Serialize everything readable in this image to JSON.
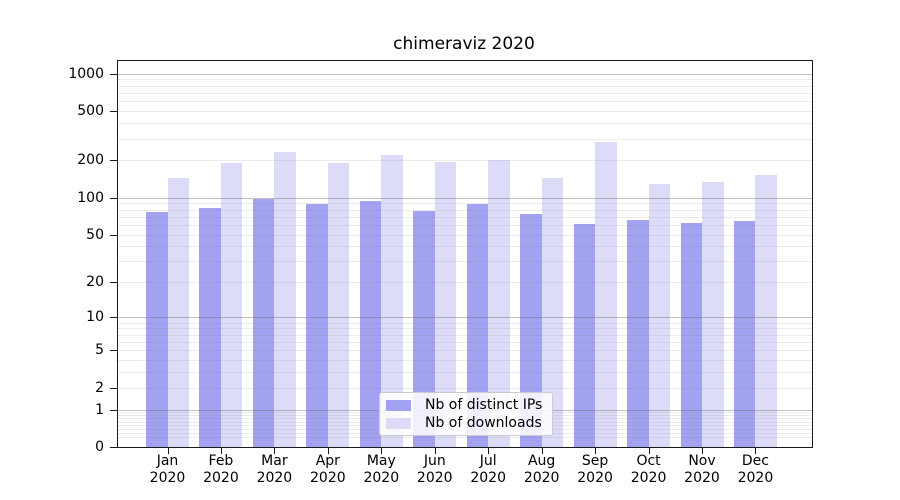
{
  "chart_data": {
    "type": "bar",
    "title": "chimeraviz 2020",
    "categories": [
      "Jan 2020",
      "Feb 2020",
      "Mar 2020",
      "Apr 2020",
      "May 2020",
      "Jun 2020",
      "Jul 2020",
      "Aug 2020",
      "Sep 2020",
      "Oct 2020",
      "Nov 2020",
      "Dec 2020"
    ],
    "series": [
      {
        "name": "Nb of distinct IPs",
        "color": "#a2a2f1",
        "values": [
          76,
          83,
          97,
          89,
          94,
          78,
          88,
          73,
          61,
          66,
          62,
          65
        ]
      },
      {
        "name": "Nb of downloads",
        "color": "#dcdcf9",
        "values": [
          145,
          192,
          236,
          190,
          223,
          196,
          202,
          145,
          280,
          130,
          134,
          152
        ]
      }
    ],
    "xlabel": "",
    "ylabel": "",
    "y_scale": "log10(value+1)",
    "y_ticks": [
      1000,
      500,
      200,
      100,
      50,
      20,
      10,
      5,
      2,
      1,
      0
    ],
    "y_major_gridlines": [
      1000,
      100,
      10,
      1
    ],
    "ylim": [
      0,
      1265
    ],
    "grid": true,
    "legend_position": "lower center"
  }
}
